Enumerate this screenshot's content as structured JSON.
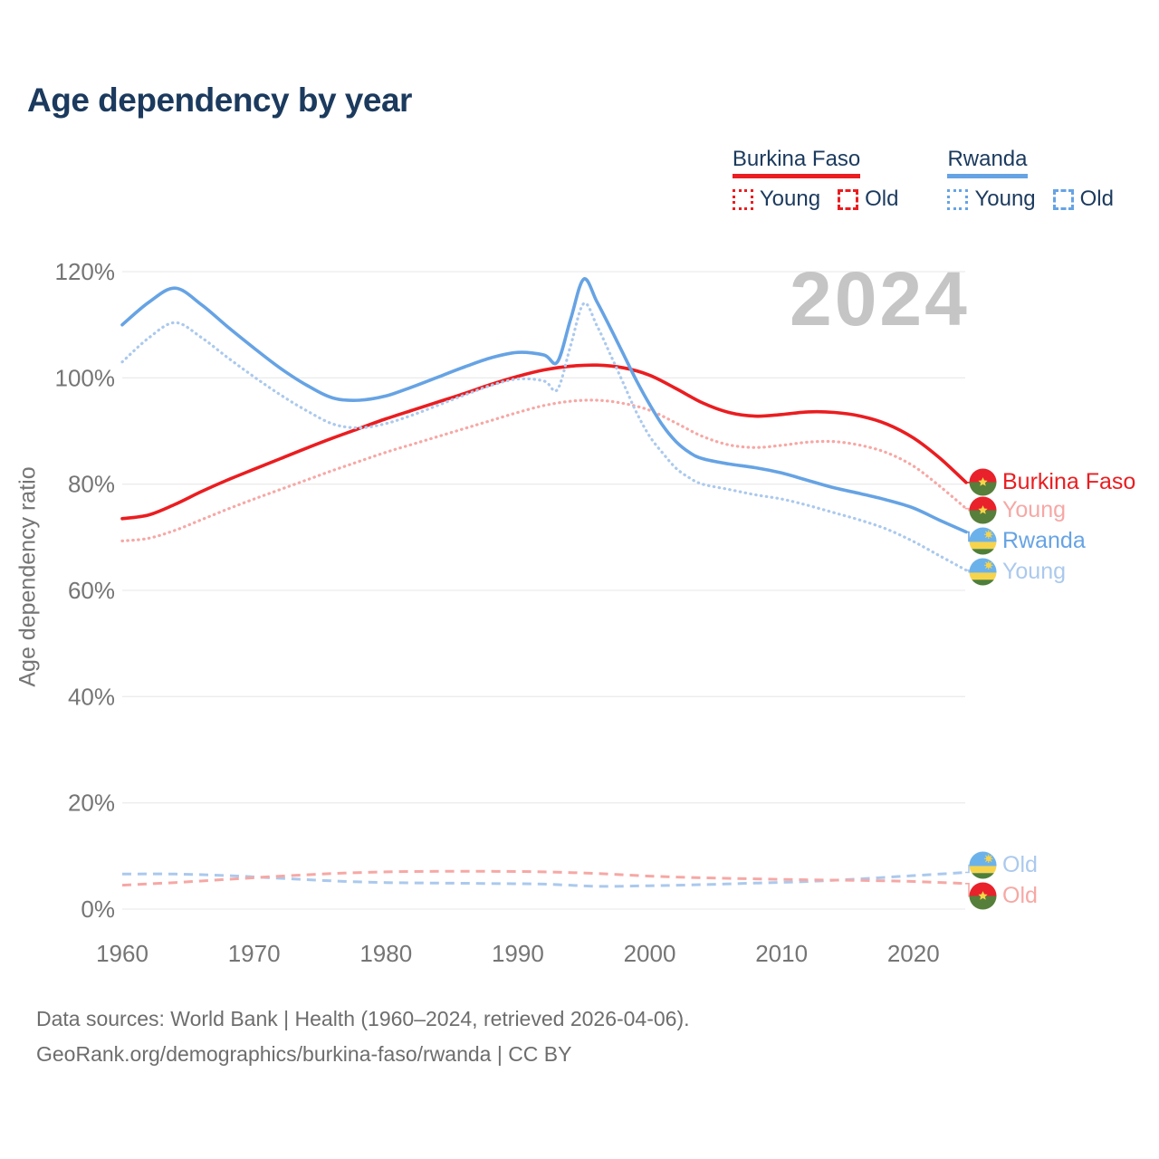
{
  "page": {
    "title": "Age dependency by year",
    "watermark_year": "2024",
    "footer_line1": "Data sources: World Bank | Health (1960–2024, retrieved 2026-04-06).",
    "footer_line2": "GeoRank.org/demographics/burkina-faso/rwanda | CC BY"
  },
  "legend": {
    "groups": [
      {
        "country": "Burkina Faso",
        "color": "#ea1d20",
        "young_label": "Young",
        "old_label": "Old"
      },
      {
        "country": "Rwanda",
        "color": "#66a3e4",
        "young_label": "Young",
        "old_label": "Old"
      }
    ]
  },
  "chart_data": {
    "type": "line",
    "title": "Age dependency by year",
    "xlabel": "",
    "ylabel": "Age dependency ratio",
    "xlim": [
      1960,
      2024
    ],
    "ylim": [
      0,
      125
    ],
    "grid": "horizontal",
    "y_ticks": [
      {
        "value": 0,
        "label": "0%"
      },
      {
        "value": 20,
        "label": "20%"
      },
      {
        "value": 40,
        "label": "40%"
      },
      {
        "value": 60,
        "label": "60%"
      },
      {
        "value": 80,
        "label": "80%"
      },
      {
        "value": 100,
        "label": "100%"
      },
      {
        "value": 120,
        "label": "120%"
      }
    ],
    "x_ticks": [
      {
        "value": 1960,
        "label": "1960"
      },
      {
        "value": 1970,
        "label": "1970"
      },
      {
        "value": 1980,
        "label": "1980"
      },
      {
        "value": 1990,
        "label": "1990"
      },
      {
        "value": 2000,
        "label": "2000"
      },
      {
        "value": 2010,
        "label": "2010"
      },
      {
        "value": 2020,
        "label": "2020"
      }
    ],
    "series": [
      {
        "id": "bf_total",
        "name": "Burkina Faso (total)",
        "country": "Burkina Faso",
        "color": "#ea1d20",
        "dash": "solid",
        "width": 3.6,
        "x": [
          1960,
          1962,
          1964,
          1966,
          1968,
          1970,
          1972,
          1974,
          1976,
          1978,
          1980,
          1982,
          1984,
          1986,
          1988,
          1990,
          1992,
          1994,
          1996,
          1998,
          2000,
          2002,
          2004,
          2006,
          2008,
          2010,
          2012,
          2014,
          2016,
          2018,
          2020,
          2022,
          2024
        ],
        "values": [
          73.5,
          74.2,
          76.2,
          78.6,
          80.8,
          82.8,
          84.8,
          86.8,
          88.7,
          90.5,
          92.3,
          93.9,
          95.5,
          97.1,
          98.8,
          100.3,
          101.5,
          102.2,
          102.4,
          101.9,
          100.5,
          98.0,
          95.3,
          93.5,
          92.8,
          93.1,
          93.6,
          93.5,
          92.8,
          91.3,
          88.7,
          84.9,
          80.3
        ]
      },
      {
        "id": "bf_young",
        "name": "Burkina Faso Young",
        "country": "Burkina Faso",
        "color": "#f6a8a5",
        "dash": "dotted",
        "width": 3.2,
        "x": [
          1960,
          1962,
          1964,
          1966,
          1968,
          1970,
          1972,
          1974,
          1976,
          1978,
          1980,
          1982,
          1984,
          1986,
          1988,
          1990,
          1992,
          1994,
          1996,
          1998,
          2000,
          2002,
          2004,
          2006,
          2008,
          2010,
          2012,
          2014,
          2016,
          2018,
          2020,
          2022,
          2024
        ],
        "values": [
          69.3,
          69.8,
          71.3,
          73.3,
          75.3,
          77.2,
          79.0,
          80.8,
          82.6,
          84.3,
          86.0,
          87.5,
          89.0,
          90.5,
          92.0,
          93.5,
          94.8,
          95.6,
          95.8,
          95.2,
          93.9,
          91.5,
          89.0,
          87.4,
          86.9,
          87.3,
          87.9,
          88.0,
          87.3,
          85.9,
          83.4,
          79.6,
          75.4
        ]
      },
      {
        "id": "rw_total",
        "name": "Rwanda (total)",
        "country": "Rwanda",
        "color": "#66a3e4",
        "dash": "solid",
        "width": 3.6,
        "x": [
          1960,
          1962,
          1964,
          1966,
          1968,
          1970,
          1972,
          1974,
          1976,
          1978,
          1980,
          1982,
          1984,
          1986,
          1988,
          1990,
          1992,
          1993,
          1994,
          1995,
          1996,
          1997,
          1998,
          1999,
          2000,
          2001,
          2002,
          2003,
          2004,
          2006,
          2008,
          2010,
          2012,
          2014,
          2016,
          2018,
          2020,
          2022,
          2024
        ],
        "values": [
          110.0,
          114.2,
          116.9,
          113.8,
          109.6,
          105.6,
          101.8,
          98.6,
          96.2,
          95.8,
          96.6,
          98.3,
          100.2,
          102.1,
          103.8,
          104.8,
          104.3,
          103.0,
          111.0,
          118.6,
          114.3,
          109.5,
          104.5,
          99.5,
          95.0,
          91.0,
          88.0,
          86.0,
          84.8,
          83.8,
          83.1,
          82.1,
          80.7,
          79.3,
          78.2,
          77.0,
          75.5,
          73.2,
          71.0
        ]
      },
      {
        "id": "rw_young",
        "name": "Rwanda Young",
        "country": "Rwanda",
        "color": "#abc9ed",
        "dash": "dotted",
        "width": 3.2,
        "x": [
          1960,
          1962,
          1964,
          1966,
          1968,
          1970,
          1972,
          1974,
          1976,
          1978,
          1980,
          1982,
          1984,
          1986,
          1988,
          1990,
          1992,
          1993,
          1994,
          1995,
          1996,
          1997,
          1998,
          1999,
          2000,
          2001,
          2002,
          2003,
          2004,
          2006,
          2008,
          2010,
          2012,
          2014,
          2016,
          2018,
          2020,
          2022,
          2024
        ],
        "values": [
          103.0,
          107.5,
          110.4,
          107.6,
          103.8,
          100.2,
          96.8,
          93.8,
          91.3,
          90.6,
          91.4,
          93.0,
          94.9,
          96.8,
          98.6,
          99.8,
          99.4,
          97.8,
          106.0,
          114.0,
          109.8,
          104.5,
          99.0,
          93.5,
          89.0,
          85.8,
          83.0,
          81.2,
          80.0,
          79.0,
          78.0,
          77.2,
          76.0,
          74.6,
          73.2,
          71.5,
          69.2,
          66.5,
          63.8
        ]
      },
      {
        "id": "rw_old",
        "name": "Rwanda Old",
        "country": "Rwanda",
        "color": "#abc9ed",
        "dash": "dashed",
        "width": 3.0,
        "x": [
          1960,
          1964,
          1968,
          1972,
          1976,
          1980,
          1984,
          1988,
          1992,
          1996,
          2000,
          2004,
          2008,
          2012,
          2016,
          2020,
          2024
        ],
        "values": [
          6.6,
          6.6,
          6.3,
          5.8,
          5.3,
          5.0,
          4.9,
          4.8,
          4.7,
          4.3,
          4.4,
          4.6,
          4.9,
          5.2,
          5.7,
          6.3,
          6.9
        ]
      },
      {
        "id": "bf_old",
        "name": "Burkina Faso Old",
        "country": "Burkina Faso",
        "color": "#f6a8a5",
        "dash": "dashed",
        "width": 3.0,
        "x": [
          1960,
          1964,
          1968,
          1972,
          1976,
          1980,
          1984,
          1988,
          1992,
          1996,
          2000,
          2004,
          2008,
          2012,
          2016,
          2020,
          2024
        ],
        "values": [
          4.5,
          5.0,
          5.6,
          6.2,
          6.7,
          7.0,
          7.1,
          7.1,
          7.0,
          6.7,
          6.2,
          5.9,
          5.7,
          5.5,
          5.4,
          5.2,
          4.8
        ]
      }
    ],
    "end_labels": [
      {
        "label": "Burkina Faso",
        "series": "bf_total",
        "flag": "burkina-faso",
        "color": "#ea1d20"
      },
      {
        "label": "Young",
        "series": "bf_young",
        "flag": "burkina-faso",
        "color": "#f6a8a5"
      },
      {
        "label": "Rwanda",
        "series": "rw_total",
        "flag": "rwanda",
        "color": "#66a3e4"
      },
      {
        "label": "Young",
        "series": "rw_young",
        "flag": "rwanda",
        "color": "#abc9ed"
      },
      {
        "label": "Old",
        "series": "rw_old",
        "flag": "rwanda",
        "color": "#abc9ed"
      },
      {
        "label": "Old",
        "series": "bf_old",
        "flag": "burkina-faso",
        "color": "#f6a8a5"
      }
    ]
  }
}
